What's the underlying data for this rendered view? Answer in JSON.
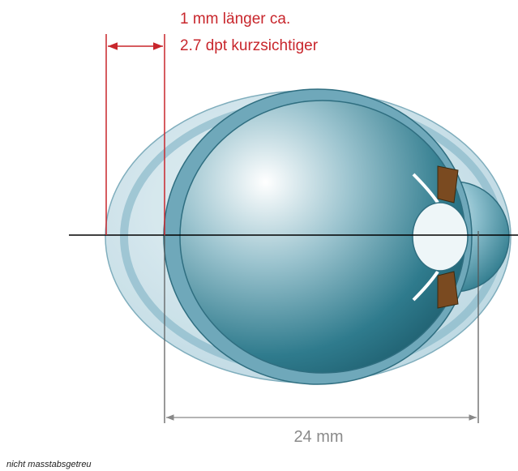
{
  "annotation": {
    "line1": "1 mm länger ca.",
    "line2": "2.7 dpt kurzsichtiger"
  },
  "dimension": {
    "label": "24 mm"
  },
  "footnote": "nicht masstabsgetreu"
}
